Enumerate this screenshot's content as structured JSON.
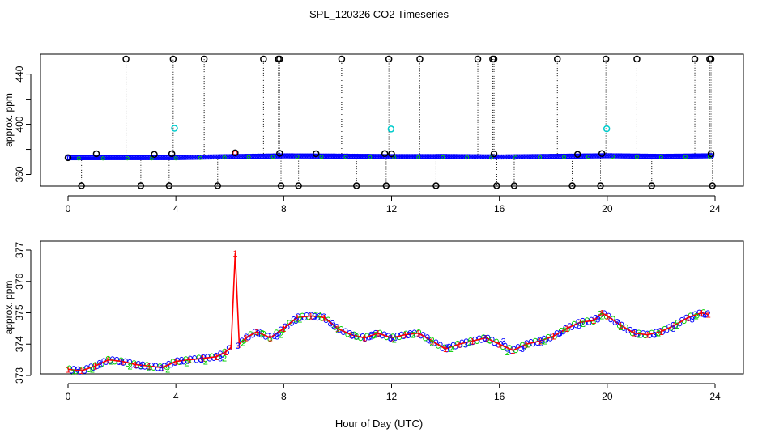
{
  "title": "SPL_120326  CO2 Timeseries",
  "xlabel": "Hour of Day (UTC)",
  "colors": {
    "series_blue": "#0000ff",
    "series_green": "#00cc00",
    "series_red": "#ff0000",
    "series_cyan": "#00cccc",
    "outlier_black": "#000000"
  },
  "chart_data": [
    {
      "type": "scatter",
      "ylabel": "approx. ppm",
      "xlim": [
        0,
        24
      ],
      "ylim": [
        350,
        452
      ],
      "xticks": [
        0,
        4,
        8,
        12,
        16,
        20,
        24
      ],
      "yticks": [
        360,
        400,
        440
      ],
      "grid": false,
      "baseline": [
        [
          0,
          373.3
        ],
        [
          2,
          373.4
        ],
        [
          4,
          373.4
        ],
        [
          6,
          374.2
        ],
        [
          8,
          374.8
        ],
        [
          10,
          374.6
        ],
        [
          12,
          374.2
        ],
        [
          14,
          374.3
        ],
        [
          16,
          373.9
        ],
        [
          18,
          374.4
        ],
        [
          20,
          374.9
        ],
        [
          22,
          374.4
        ],
        [
          24,
          374.9
        ]
      ],
      "high_outliers": [
        2.15,
        3.9,
        5.05,
        7.25,
        7.8,
        7.85,
        10.15,
        11.9,
        13.05,
        15.2,
        15.75,
        15.8,
        18.15,
        19.95,
        21.1,
        23.25,
        23.8,
        23.85
      ],
      "high_outlier_value": 452,
      "low_outliers": [
        0.5,
        2.7,
        3.75,
        5.55,
        7.9,
        8.55,
        10.7,
        11.8,
        13.65,
        15.9,
        16.55,
        18.7,
        19.75,
        21.65,
        23.9
      ],
      "low_outlier_value": 351,
      "mid_points": [
        [
          0.0,
          373.3
        ],
        [
          1.05,
          376.5
        ],
        [
          3.2,
          376
        ],
        [
          3.85,
          376.5
        ],
        [
          6.2,
          377.2
        ],
        [
          7.85,
          376.8
        ],
        [
          9.2,
          376.5
        ],
        [
          11.75,
          376.6
        ],
        [
          12.0,
          376.4
        ],
        [
          15.8,
          376.4
        ],
        [
          18.9,
          376
        ],
        [
          19.8,
          376.6
        ],
        [
          23.85,
          376.5
        ]
      ],
      "cyan_points": [
        [
          3.95,
          396.8
        ],
        [
          11.98,
          396.2
        ],
        [
          19.98,
          396.4
        ]
      ]
    },
    {
      "type": "scatter",
      "ylabel": "approx. ppm",
      "xlim": [
        0,
        24
      ],
      "ylim": [
        373,
        377
      ],
      "xticks": [
        0,
        4,
        8,
        12,
        16,
        20,
        24
      ],
      "yticks": [
        373,
        374,
        375,
        376,
        377
      ],
      "grid": false,
      "series": [
        {
          "name": "1",
          "color": "#ff0000",
          "points": [
            [
              0,
              373.2
            ],
            [
              0.5,
              373.15
            ],
            [
              1,
              373.3
            ],
            [
              1.5,
              373.5
            ],
            [
              2,
              373.45
            ],
            [
              2.5,
              373.35
            ],
            [
              3,
              373.3
            ],
            [
              3.5,
              373.25
            ],
            [
              4,
              373.45
            ],
            [
              4.5,
              373.5
            ],
            [
              5,
              373.55
            ],
            [
              5.5,
              373.6
            ],
            [
              5.85,
              373.75
            ],
            [
              6.05,
              373.9
            ],
            [
              6.2,
              376.9
            ],
            [
              6.35,
              374.0
            ],
            [
              6.6,
              374.2
            ],
            [
              7,
              374.4
            ],
            [
              7.5,
              374.2
            ],
            [
              8,
              374.5
            ],
            [
              8.5,
              374.85
            ],
            [
              9,
              374.9
            ],
            [
              9.5,
              374.85
            ],
            [
              10,
              374.5
            ],
            [
              10.5,
              374.3
            ],
            [
              11,
              374.2
            ],
            [
              11.5,
              374.35
            ],
            [
              12,
              374.2
            ],
            [
              12.5,
              374.3
            ],
            [
              13,
              374.35
            ],
            [
              13.5,
              374.1
            ],
            [
              14,
              373.85
            ],
            [
              14.5,
              374.0
            ],
            [
              15,
              374.1
            ],
            [
              15.5,
              374.2
            ],
            [
              16,
              374.0
            ],
            [
              16.5,
              373.8
            ],
            [
              17,
              374.0
            ],
            [
              17.5,
              374.1
            ],
            [
              18,
              374.25
            ],
            [
              18.5,
              374.5
            ],
            [
              19,
              374.7
            ],
            [
              19.5,
              374.75
            ],
            [
              19.8,
              375.0
            ],
            [
              20,
              374.9
            ],
            [
              20.5,
              374.6
            ],
            [
              21,
              374.35
            ],
            [
              21.5,
              374.3
            ],
            [
              22,
              374.4
            ],
            [
              22.5,
              374.6
            ],
            [
              23,
              374.85
            ],
            [
              23.5,
              375.0
            ],
            [
              23.75,
              374.95
            ]
          ]
        },
        {
          "name": "2",
          "color": "#00cc00",
          "points": [
            [
              0.2,
              373.1
            ],
            [
              0.9,
              373.2
            ],
            [
              1.6,
              373.45
            ],
            [
              2.3,
              373.3
            ],
            [
              3.0,
              373.25
            ],
            [
              3.7,
              373.2
            ],
            [
              4.4,
              373.4
            ],
            [
              5.1,
              373.45
            ],
            [
              5.8,
              373.55
            ],
            [
              6.5,
              374.05
            ],
            [
              7.2,
              374.35
            ],
            [
              7.9,
              374.3
            ],
            [
              8.6,
              374.8
            ],
            [
              9.3,
              374.95
            ],
            [
              10.0,
              374.45
            ],
            [
              10.7,
              374.25
            ],
            [
              11.4,
              374.3
            ],
            [
              12.1,
              374.15
            ],
            [
              12.8,
              374.3
            ],
            [
              13.5,
              374.05
            ],
            [
              14.2,
              373.85
            ],
            [
              14.9,
              374.05
            ],
            [
              15.6,
              374.15
            ],
            [
              16.3,
              373.75
            ],
            [
              17.0,
              373.9
            ],
            [
              17.7,
              374.1
            ],
            [
              18.4,
              374.45
            ],
            [
              19.1,
              374.65
            ],
            [
              19.8,
              374.9
            ],
            [
              20.5,
              374.55
            ],
            [
              21.2,
              374.3
            ],
            [
              21.9,
              374.35
            ],
            [
              22.6,
              374.6
            ],
            [
              23.3,
              374.9
            ]
          ]
        },
        {
          "name": "3",
          "color": "#0000ff",
          "points": [
            [
              0.35,
              373.2
            ],
            [
              1.2,
              373.35
            ],
            [
              1.95,
              373.45
            ],
            [
              2.7,
              373.3
            ],
            [
              3.45,
              373.25
            ],
            [
              4.2,
              373.45
            ],
            [
              4.95,
              373.5
            ],
            [
              5.65,
              373.55
            ],
            [
              6.3,
              373.95
            ],
            [
              7.05,
              374.35
            ],
            [
              7.75,
              374.25
            ],
            [
              8.45,
              374.75
            ],
            [
              9.15,
              374.9
            ],
            [
              9.85,
              374.6
            ],
            [
              10.55,
              374.3
            ],
            [
              11.25,
              374.25
            ],
            [
              11.95,
              374.2
            ],
            [
              12.65,
              374.3
            ],
            [
              13.35,
              374.15
            ],
            [
              14.05,
              373.9
            ],
            [
              14.75,
              374.0
            ],
            [
              15.45,
              374.2
            ],
            [
              16.15,
              374.1
            ],
            [
              16.85,
              373.85
            ],
            [
              17.55,
              374.05
            ],
            [
              18.25,
              374.35
            ],
            [
              18.95,
              374.6
            ],
            [
              19.65,
              374.8
            ],
            [
              20.35,
              374.7
            ],
            [
              21.05,
              374.4
            ],
            [
              21.75,
              374.3
            ],
            [
              22.45,
              374.5
            ],
            [
              23.15,
              374.8
            ],
            [
              23.6,
              374.95
            ]
          ]
        }
      ]
    }
  ]
}
